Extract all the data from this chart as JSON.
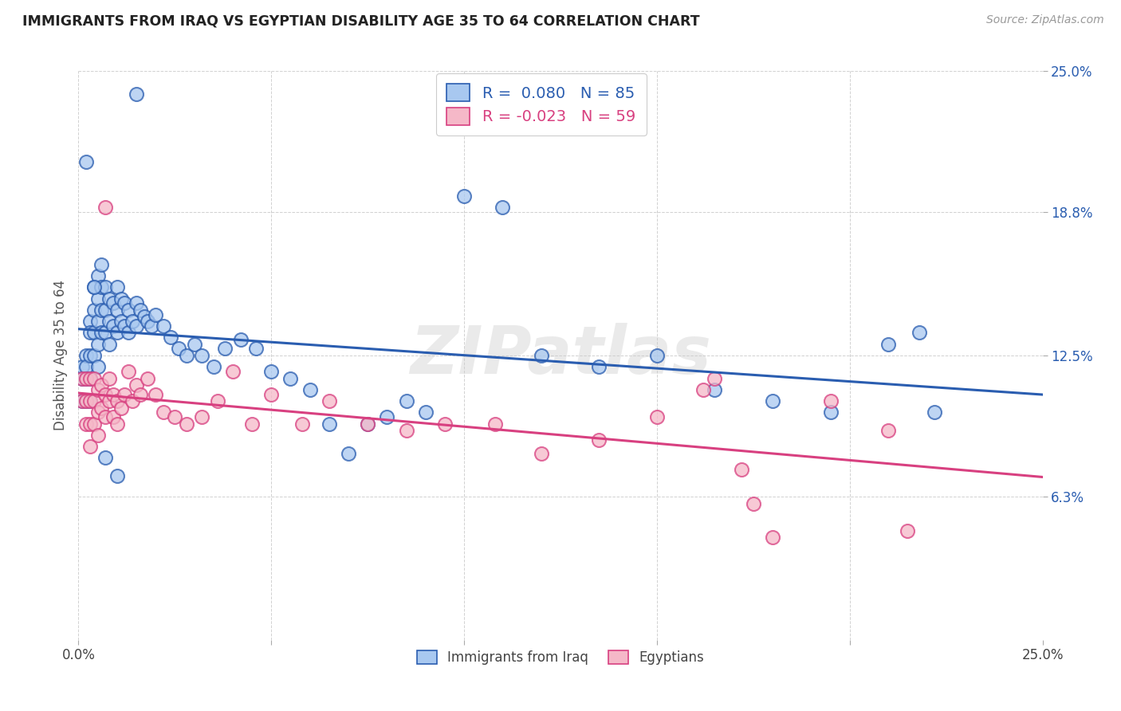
{
  "title": "IMMIGRANTS FROM IRAQ VS EGYPTIAN DISABILITY AGE 35 TO 64 CORRELATION CHART",
  "source": "Source: ZipAtlas.com",
  "ylabel": "Disability Age 35 to 64",
  "xmin": 0.0,
  "xmax": 0.25,
  "ymin": 0.0,
  "ymax": 0.25,
  "yticks": [
    0.063,
    0.125,
    0.188,
    0.25
  ],
  "ytick_labels": [
    "6.3%",
    "12.5%",
    "18.8%",
    "25.0%"
  ],
  "color_iraq": "#A8C8F0",
  "color_egypt": "#F5B8C8",
  "line_color_iraq": "#2A5DB0",
  "line_color_egypt": "#D84080",
  "R_iraq": 0.08,
  "N_iraq": 85,
  "R_egypt": -0.023,
  "N_egypt": 59,
  "watermark": "ZIPatlas",
  "legend_labels": [
    "Immigrants from Iraq",
    "Egyptians"
  ],
  "iraq_x": [
    0.001,
    0.001,
    0.001,
    0.002,
    0.002,
    0.002,
    0.002,
    0.003,
    0.003,
    0.003,
    0.003,
    0.003,
    0.004,
    0.004,
    0.004,
    0.004,
    0.005,
    0.005,
    0.005,
    0.005,
    0.005,
    0.006,
    0.006,
    0.006,
    0.006,
    0.007,
    0.007,
    0.007,
    0.008,
    0.008,
    0.008,
    0.009,
    0.009,
    0.01,
    0.01,
    0.01,
    0.011,
    0.011,
    0.012,
    0.012,
    0.013,
    0.013,
    0.014,
    0.015,
    0.015,
    0.016,
    0.017,
    0.018,
    0.019,
    0.02,
    0.022,
    0.024,
    0.026,
    0.028,
    0.03,
    0.032,
    0.035,
    0.038,
    0.042,
    0.046,
    0.05,
    0.055,
    0.06,
    0.065,
    0.07,
    0.075,
    0.08,
    0.085,
    0.09,
    0.1,
    0.11,
    0.12,
    0.135,
    0.15,
    0.165,
    0.18,
    0.195,
    0.21,
    0.218,
    0.222,
    0.002,
    0.004,
    0.007,
    0.01,
    0.015
  ],
  "iraq_y": [
    0.12,
    0.115,
    0.105,
    0.125,
    0.12,
    0.115,
    0.105,
    0.14,
    0.135,
    0.125,
    0.115,
    0.105,
    0.155,
    0.145,
    0.135,
    0.125,
    0.16,
    0.15,
    0.14,
    0.13,
    0.12,
    0.165,
    0.155,
    0.145,
    0.135,
    0.155,
    0.145,
    0.135,
    0.15,
    0.14,
    0.13,
    0.148,
    0.138,
    0.155,
    0.145,
    0.135,
    0.15,
    0.14,
    0.148,
    0.138,
    0.145,
    0.135,
    0.14,
    0.148,
    0.138,
    0.145,
    0.142,
    0.14,
    0.138,
    0.143,
    0.138,
    0.133,
    0.128,
    0.125,
    0.13,
    0.125,
    0.12,
    0.128,
    0.132,
    0.128,
    0.118,
    0.115,
    0.11,
    0.095,
    0.082,
    0.095,
    0.098,
    0.105,
    0.1,
    0.195,
    0.19,
    0.125,
    0.12,
    0.125,
    0.11,
    0.105,
    0.1,
    0.13,
    0.135,
    0.1,
    0.21,
    0.155,
    0.08,
    0.072,
    0.24
  ],
  "egypt_x": [
    0.001,
    0.001,
    0.002,
    0.002,
    0.002,
    0.003,
    0.003,
    0.003,
    0.003,
    0.004,
    0.004,
    0.004,
    0.005,
    0.005,
    0.005,
    0.006,
    0.006,
    0.007,
    0.007,
    0.007,
    0.008,
    0.008,
    0.009,
    0.009,
    0.01,
    0.01,
    0.011,
    0.012,
    0.013,
    0.014,
    0.015,
    0.016,
    0.018,
    0.02,
    0.022,
    0.025,
    0.028,
    0.032,
    0.036,
    0.04,
    0.045,
    0.05,
    0.058,
    0.065,
    0.075,
    0.085,
    0.095,
    0.108,
    0.12,
    0.135,
    0.15,
    0.165,
    0.18,
    0.195,
    0.21,
    0.162,
    0.172,
    0.175,
    0.215
  ],
  "egypt_y": [
    0.115,
    0.105,
    0.115,
    0.105,
    0.095,
    0.115,
    0.105,
    0.095,
    0.085,
    0.115,
    0.105,
    0.095,
    0.11,
    0.1,
    0.09,
    0.112,
    0.102,
    0.19,
    0.108,
    0.098,
    0.115,
    0.105,
    0.108,
    0.098,
    0.105,
    0.095,
    0.102,
    0.108,
    0.118,
    0.105,
    0.112,
    0.108,
    0.115,
    0.108,
    0.1,
    0.098,
    0.095,
    0.098,
    0.105,
    0.118,
    0.095,
    0.108,
    0.095,
    0.105,
    0.095,
    0.092,
    0.095,
    0.095,
    0.082,
    0.088,
    0.098,
    0.115,
    0.045,
    0.105,
    0.092,
    0.11,
    0.075,
    0.06,
    0.048
  ]
}
